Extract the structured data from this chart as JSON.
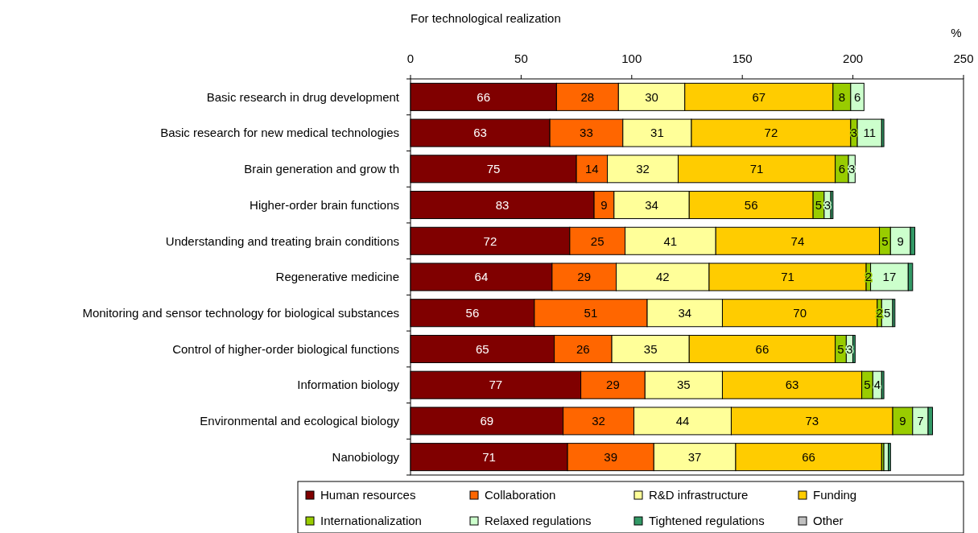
{
  "chart_data": {
    "type": "bar",
    "orientation": "horizontal",
    "stacked": true,
    "title": "For technological realization",
    "xlabel": "%",
    "xlim": [
      0,
      250
    ],
    "xticks": [
      0,
      50,
      100,
      150,
      200,
      250
    ],
    "grid": false,
    "legend": "bottom",
    "categories": [
      "Basic research in drug development",
      "Basic research for new  medical technologies",
      "Brain generation and grow th",
      "Higher-order brain functions",
      "Understanding and treating brain conditions",
      "Regenerative medicine",
      "Monitoring and sensor technology for biological substances",
      "Control of higher-order biological functions",
      "Information biology",
      "Environmental and ecological biology",
      "Nanobiology"
    ],
    "series": [
      {
        "name": "Human resources",
        "color": "#800000",
        "values": [
          66,
          63,
          75,
          83,
          72,
          64,
          56,
          65,
          77,
          69,
          71
        ],
        "value_labels": [
          "66",
          "63",
          "75",
          "83",
          "72",
          "64",
          "56",
          "65",
          "77",
          "69",
          "71"
        ]
      },
      {
        "name": "Collaboration",
        "color": "#ff6600",
        "values": [
          28,
          33,
          14,
          9,
          25,
          29,
          51,
          26,
          29,
          32,
          39
        ],
        "value_labels": [
          "28",
          "33",
          "14",
          "9",
          "25",
          "29",
          "51",
          "26",
          "29",
          "32",
          "39"
        ]
      },
      {
        "name": "R&D infrastructure",
        "color": "#ffff99",
        "values": [
          30,
          31,
          32,
          34,
          41,
          42,
          34,
          35,
          35,
          44,
          37
        ],
        "value_labels": [
          "30",
          "31",
          "32",
          "34",
          "41",
          "42",
          "34",
          "35",
          "35",
          "44",
          "37"
        ]
      },
      {
        "name": "Funding",
        "color": "#ffcc00",
        "values": [
          67,
          72,
          71,
          56,
          74,
          71,
          70,
          66,
          63,
          73,
          66
        ],
        "value_labels": [
          "67",
          "72",
          "71",
          "56",
          "74",
          "71",
          "70",
          "66",
          "63",
          "73",
          "66"
        ]
      },
      {
        "name": "Internationalization",
        "color": "#99cc00",
        "values": [
          8,
          3,
          6,
          5,
          5,
          2,
          2,
          5,
          5,
          9,
          1
        ],
        "value_labels": [
          "8",
          "3",
          "6",
          "5",
          "5",
          "2",
          "2",
          "5",
          "5",
          "9",
          null
        ]
      },
      {
        "name": "Relaxed regulations",
        "color": "#ccffcc",
        "values": [
          6,
          11,
          3,
          3,
          9,
          17,
          5,
          3,
          4,
          7,
          2
        ],
        "value_labels": [
          "6",
          "11",
          "3",
          "3",
          "9",
          "17",
          "5",
          "3",
          "4",
          "7",
          null
        ]
      },
      {
        "name": "Tightened regulations",
        "color": "#339966",
        "values": [
          0,
          1,
          0,
          1,
          2,
          2,
          1,
          1,
          1,
          2,
          1
        ],
        "value_labels": [
          null,
          null,
          null,
          null,
          null,
          null,
          null,
          null,
          null,
          null,
          null
        ]
      },
      {
        "name": "Other",
        "color": "#c0c0c0",
        "values": [
          0,
          0,
          0,
          0,
          0,
          0,
          0,
          0,
          0,
          0,
          0
        ],
        "value_labels": [
          null,
          null,
          null,
          null,
          null,
          null,
          null,
          null,
          null,
          null,
          null
        ]
      }
    ]
  }
}
